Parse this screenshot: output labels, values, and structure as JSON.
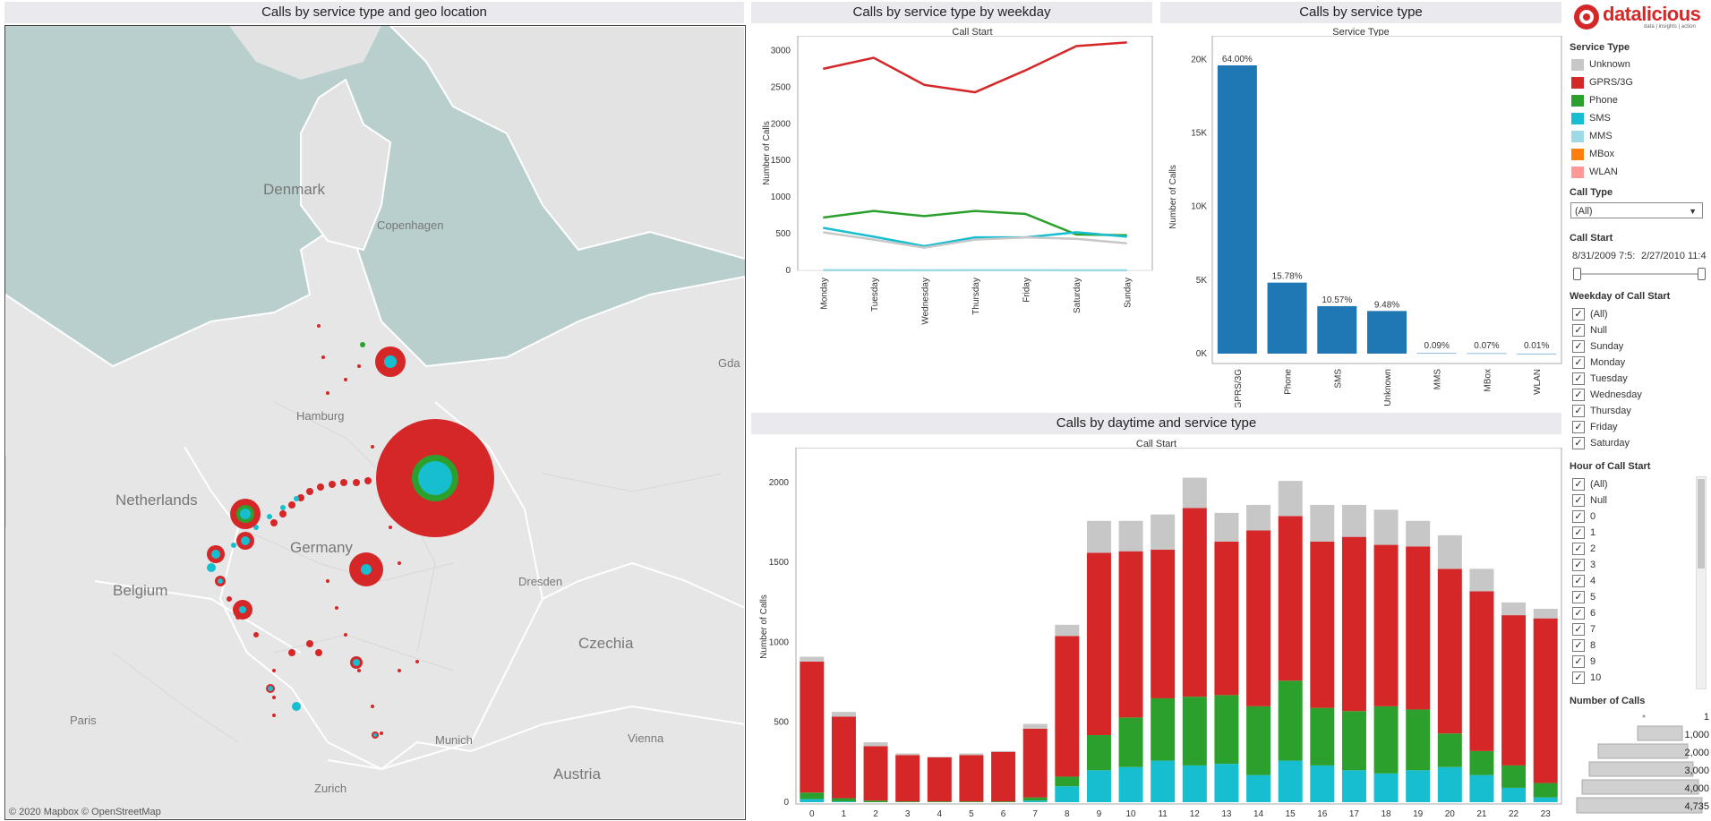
{
  "titles": {
    "map": "Calls by service type and geo location",
    "weekday": "Calls by service type by weekday",
    "servicetype": "Calls by service type",
    "daytime": "Calls by daytime and service type"
  },
  "subtitles": {
    "weekday": "Call Start",
    "servicetype": "Service Type",
    "daytime": "Call Start"
  },
  "map": {
    "labels": {
      "denmark": "Denmark",
      "copenhagen": "Copenhagen",
      "hamburg": "Hamburg",
      "netherlands": "Netherlands",
      "germany": "Germany",
      "belgium": "Belgium",
      "dresden": "Dresden",
      "czechia": "Czechia",
      "paris": "Paris",
      "vienna": "Vienna",
      "munich": "Munich",
      "zurich": "Zurich",
      "austria": "Austria",
      "gdansk": "Gda"
    },
    "attribution": "© 2020 Mapbox  © OpenStreetMap"
  },
  "colors": {
    "Unknown": "#c7c7c7",
    "GPRS/3G": "#d62728",
    "Phone": "#2ca02c",
    "SMS": "#17becf",
    "MMS": "#9edae5",
    "MBox": "#ff7f0e",
    "WLAN": "#ff9896",
    "bar": "#1f77b4"
  },
  "chart_data": [
    {
      "type": "line",
      "id": "weekday",
      "ylabel": "Number of Calls",
      "categories": [
        "Monday",
        "Tuesday",
        "Wednesday",
        "Thursday",
        "Friday",
        "Saturday",
        "Sunday"
      ],
      "ylim": [
        0,
        3200
      ],
      "yticks": [
        0,
        500,
        1000,
        1500,
        2000,
        2500,
        3000
      ],
      "series": [
        {
          "name": "GPRS/3G",
          "values": [
            2750,
            2900,
            2530,
            2430,
            2730,
            3060,
            3110
          ]
        },
        {
          "name": "Phone",
          "values": [
            720,
            810,
            740,
            810,
            770,
            490,
            480
          ]
        },
        {
          "name": "SMS",
          "values": [
            580,
            460,
            330,
            450,
            450,
            520,
            460
          ]
        },
        {
          "name": "Unknown",
          "values": [
            520,
            420,
            310,
            420,
            450,
            430,
            370
          ]
        },
        {
          "name": "MMS",
          "values": [
            3,
            3,
            2,
            3,
            3,
            2,
            2
          ]
        }
      ]
    },
    {
      "type": "bar",
      "id": "servicetype",
      "ylabel": "Number of Calls",
      "categories": [
        "GPRS/3G",
        "Phone",
        "SMS",
        "Unknown",
        "MMS",
        "MBox",
        "WLAN"
      ],
      "values": [
        19600,
        4830,
        3230,
        2900,
        28,
        21,
        3
      ],
      "labels": [
        "64.00%",
        "15.78%",
        "10.57%",
        "9.48%",
        "0.09%",
        "0.07%",
        "0.01%"
      ],
      "ylim": [
        0,
        21000
      ],
      "yticks": [
        0,
        5000,
        10000,
        15000,
        20000
      ],
      "yticklabels": [
        "0K",
        "5K",
        "10K",
        "15K",
        "20K"
      ]
    },
    {
      "type": "stacked-bar",
      "id": "daytime",
      "ylabel": "Number of Calls",
      "categories": [
        "0",
        "1",
        "2",
        "3",
        "4",
        "5",
        "6",
        "7",
        "8",
        "9",
        "10",
        "11",
        "12",
        "13",
        "14",
        "15",
        "16",
        "17",
        "18",
        "19",
        "20",
        "21",
        "22",
        "23"
      ],
      "ylim": [
        0,
        2100
      ],
      "yticks": [
        0,
        500,
        1000,
        1500,
        2000
      ],
      "series": [
        {
          "name": "SMS",
          "values": [
            20,
            5,
            0,
            0,
            0,
            0,
            0,
            10,
            100,
            200,
            220,
            260,
            230,
            240,
            170,
            260,
            230,
            200,
            180,
            200,
            220,
            170,
            90,
            30
          ]
        },
        {
          "name": "Phone",
          "values": [
            40,
            20,
            10,
            5,
            5,
            5,
            5,
            20,
            60,
            220,
            310,
            390,
            430,
            430,
            430,
            500,
            360,
            370,
            420,
            380,
            210,
            150,
            140,
            90
          ]
        },
        {
          "name": "GPRS/3G",
          "values": [
            820,
            510,
            340,
            290,
            275,
            290,
            310,
            430,
            880,
            1140,
            1040,
            930,
            1180,
            960,
            1100,
            1030,
            1040,
            1090,
            1010,
            1020,
            1030,
            1000,
            940,
            1030
          ]
        },
        {
          "name": "Unknown",
          "values": [
            30,
            30,
            25,
            10,
            5,
            10,
            5,
            30,
            70,
            200,
            190,
            220,
            190,
            180,
            160,
            220,
            230,
            200,
            220,
            160,
            210,
            140,
            80,
            60
          ]
        }
      ]
    }
  ],
  "logo": {
    "name": "datalicious",
    "tagline": "data | insights | action"
  },
  "sidebar": {
    "service_type_title": "Service Type",
    "legend": [
      "Unknown",
      "GPRS/3G",
      "Phone",
      "SMS",
      "MMS",
      "MBox",
      "WLAN"
    ],
    "call_type_title": "Call Type",
    "call_type_value": "(All)",
    "call_start_title": "Call Start",
    "call_start_from": "8/31/2009 7:5:",
    "call_start_to": "2/27/2010 11:4",
    "weekday_title": "Weekday of Call Start",
    "weekday_items": [
      "(All)",
      "Null",
      "Sunday",
      "Monday",
      "Tuesday",
      "Wednesday",
      "Thursday",
      "Friday",
      "Saturday"
    ],
    "hour_title": "Hour of Call Start",
    "hour_items": [
      "(All)",
      "Null",
      "0",
      "1",
      "2",
      "3",
      "4",
      "5",
      "6",
      "7",
      "8",
      "9",
      "10"
    ],
    "size_title": "Number of Calls",
    "size_values": [
      "1",
      "1,000",
      "2,000",
      "3,000",
      "4,000",
      "4,735"
    ]
  }
}
